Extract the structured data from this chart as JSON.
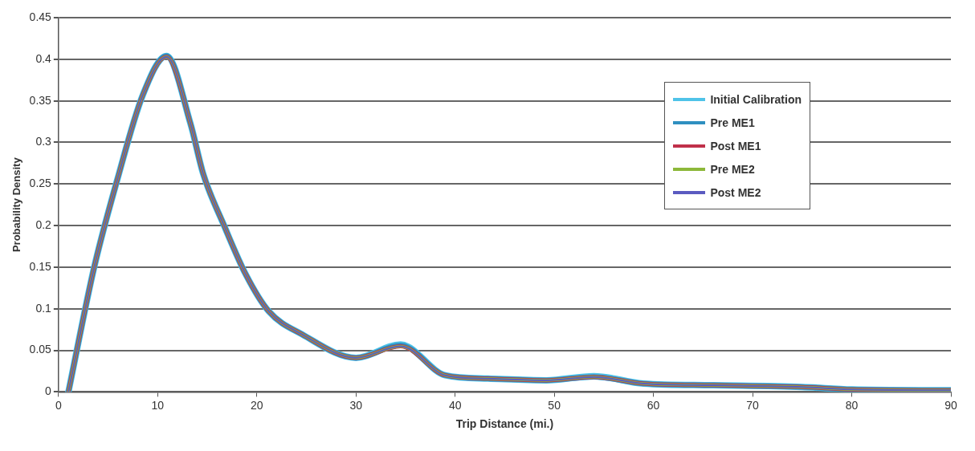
{
  "chart_data": {
    "type": "line",
    "xlabel": "Trip Distance (mi.)",
    "ylabel": "Probability Density",
    "x": [
      1,
      3.6,
      5.9,
      8.5,
      10.9,
      13.3,
      14.6,
      16.7,
      18.9,
      21.2,
      24.6,
      30,
      34.5,
      39,
      43.3,
      49.2,
      54,
      59,
      66,
      75,
      80,
      90
    ],
    "series": [
      {
        "name": "Initial Calibration",
        "color": "#4fc3e8",
        "values": [
          0,
          0.15,
          0.254,
          0.357,
          0.404,
          0.323,
          0.262,
          0.2,
          0.141,
          0.097,
          0.069,
          0.041,
          0.057,
          0.02,
          0.016,
          0.014,
          0.019,
          0.01,
          0.008,
          0.006,
          0.003,
          0.002
        ]
      },
      {
        "name": "Pre ME1",
        "color": "#2f8fc0",
        "values": [
          0,
          0.15,
          0.254,
          0.357,
          0.404,
          0.323,
          0.262,
          0.2,
          0.141,
          0.097,
          0.069,
          0.041,
          0.056,
          0.02,
          0.016,
          0.014,
          0.018,
          0.01,
          0.008,
          0.006,
          0.003,
          0.002
        ]
      },
      {
        "name": "Post ME1",
        "color": "#c0304a",
        "values": [
          0,
          0.15,
          0.254,
          0.357,
          0.403,
          0.323,
          0.262,
          0.2,
          0.141,
          0.097,
          0.069,
          0.041,
          0.055,
          0.02,
          0.016,
          0.014,
          0.018,
          0.01,
          0.008,
          0.006,
          0.003,
          0.002
        ]
      },
      {
        "name": "Pre ME2",
        "color": "#8db83a",
        "values": [
          0,
          0.15,
          0.254,
          0.357,
          0.403,
          0.323,
          0.262,
          0.2,
          0.141,
          0.097,
          0.069,
          0.041,
          0.055,
          0.02,
          0.016,
          0.014,
          0.018,
          0.01,
          0.008,
          0.006,
          0.003,
          0.002
        ]
      },
      {
        "name": "Post ME2",
        "color": "#5b5bc0",
        "values": [
          0,
          0.15,
          0.254,
          0.357,
          0.403,
          0.323,
          0.262,
          0.2,
          0.141,
          0.097,
          0.069,
          0.041,
          0.055,
          0.02,
          0.016,
          0.014,
          0.018,
          0.01,
          0.008,
          0.006,
          0.003,
          0.002
        ]
      }
    ],
    "xlim": [
      0,
      90
    ],
    "xticks": [
      0,
      10,
      20,
      30,
      40,
      50,
      60,
      70,
      80,
      90
    ],
    "ylim": [
      0,
      0.45
    ],
    "yticks": [
      0,
      0.05,
      0.1,
      0.15,
      0.2,
      0.25,
      0.3,
      0.35,
      0.4,
      0.45
    ],
    "grid": "y",
    "legend": "top right",
    "marker": "none",
    "line_style": "solid"
  }
}
